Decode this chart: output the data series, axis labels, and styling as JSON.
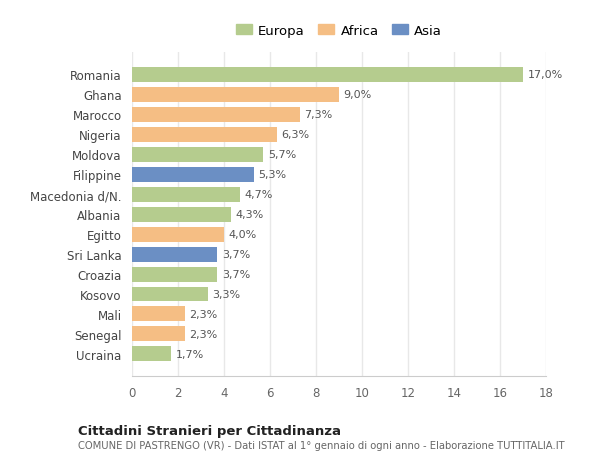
{
  "categories": [
    "Ucraina",
    "Senegal",
    "Mali",
    "Kosovo",
    "Croazia",
    "Sri Lanka",
    "Egitto",
    "Albania",
    "Macedonia d/N.",
    "Filippine",
    "Moldova",
    "Nigeria",
    "Marocco",
    "Ghana",
    "Romania"
  ],
  "values": [
    1.7,
    2.3,
    2.3,
    3.3,
    3.7,
    3.7,
    4.0,
    4.3,
    4.7,
    5.3,
    5.7,
    6.3,
    7.3,
    9.0,
    17.0
  ],
  "colors": [
    "#b5cc8e",
    "#f5be84",
    "#f5be84",
    "#b5cc8e",
    "#b5cc8e",
    "#6b8fc4",
    "#f5be84",
    "#b5cc8e",
    "#b5cc8e",
    "#6b8fc4",
    "#b5cc8e",
    "#f5be84",
    "#f5be84",
    "#f5be84",
    "#b5cc8e"
  ],
  "labels": [
    "1,7%",
    "2,3%",
    "2,3%",
    "3,3%",
    "3,7%",
    "3,7%",
    "4,0%",
    "4,3%",
    "4,7%",
    "5,3%",
    "5,7%",
    "6,3%",
    "7,3%",
    "9,0%",
    "17,0%"
  ],
  "legend": [
    {
      "label": "Europa",
      "color": "#b5cc8e"
    },
    {
      "label": "Africa",
      "color": "#f5be84"
    },
    {
      "label": "Asia",
      "color": "#6b8fc4"
    }
  ],
  "xlim": [
    0,
    18
  ],
  "xticks": [
    0,
    2,
    4,
    6,
    8,
    10,
    12,
    14,
    16,
    18
  ],
  "title": "Cittadini Stranieri per Cittadinanza",
  "subtitle": "COMUNE DI PASTRENGO (VR) - Dati ISTAT al 1° gennaio di ogni anno - Elaborazione TUTTITALIA.IT",
  "bg_color": "#ffffff",
  "grid_color": "#e8e8e8",
  "bar_height": 0.75
}
